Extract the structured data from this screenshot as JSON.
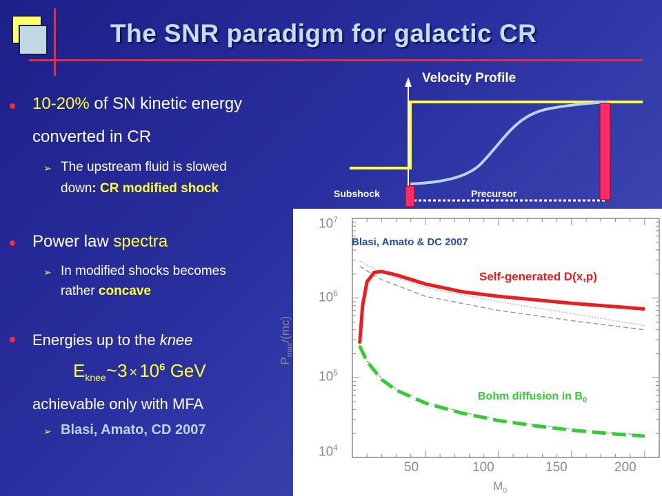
{
  "title": "The SNR paradigm for galactic CR",
  "bullets": {
    "b1_pct": "10-20%",
    "b1_rest": " of SN kinetic energy",
    "b1_line2": "converted in CR",
    "b1_sub_line1": "The upstream fluid is slowed",
    "b1_sub_line2a": "down",
    "b1_sub_line2b": ": CR modified shock",
    "b2_a": "Power law ",
    "b2_b": "spectra",
    "b2_sub_line1": "In modified shocks becomes",
    "b2_sub_line2a": "rather ",
    "b2_sub_line2b": "concave",
    "b3_a": "Energies up to the ",
    "b3_b": "knee",
    "formula_e": "E",
    "formula_sub": "knee",
    "formula_sim": "~",
    "formula_mid": "3",
    "formula_times": "×",
    "formula_ten": "10",
    "formula_exp": "6",
    "formula_unit": " GeV",
    "b3_line3": "achievable only with MFA",
    "b3_sub": "Blasi, Amato, CD 2007"
  },
  "velocity_profile": {
    "title": "Velocity Profile",
    "subshock_label": "Subshock",
    "precursor_label": "Precursor"
  },
  "plot": {
    "citation": "Blasi, Amato & DC 2007",
    "self_generated_label": "Self-generated D(x,p)",
    "bohm_label": "Bohm diffusion in B",
    "bohm_sub": "0",
    "y_axis_label": "P_max/(mc)",
    "x_axis_label": "M_0",
    "x_ticks": [
      "50",
      "100",
      "150",
      "200"
    ],
    "y_ticks_base": [
      "10",
      "10",
      "10",
      "10"
    ],
    "y_ticks_exp": [
      "7",
      "6",
      "5",
      "4"
    ],
    "colors": {
      "red": "#ee1c1c",
      "green": "#33cc33",
      "blue": "#1f4da0"
    }
  },
  "chart_data": {
    "type": "line",
    "xlabel": "M_0",
    "ylabel": "P_max/(mc)",
    "xlim": [
      0,
      210
    ],
    "ylim": [
      10000,
      10000000
    ],
    "yscale": "log",
    "series": [
      {
        "name": "Self-generated D(x,p)",
        "x": [
          5,
          7,
          10,
          15,
          20,
          30,
          50,
          75,
          100,
          150,
          200
        ],
        "y": [
          270000,
          800000,
          1600000,
          2100000,
          2150000,
          1950000,
          1500000,
          1200000,
          1050000,
          860000,
          730000
        ]
      },
      {
        "name": "Bohm diffusion in B_0",
        "x": [
          5,
          10,
          20,
          30,
          50,
          75,
          100,
          125,
          150,
          175,
          200
        ],
        "y": [
          250000,
          160000,
          95000,
          70000,
          48000,
          36000,
          29000,
          25000,
          22000,
          20000,
          18500
        ]
      }
    ]
  }
}
